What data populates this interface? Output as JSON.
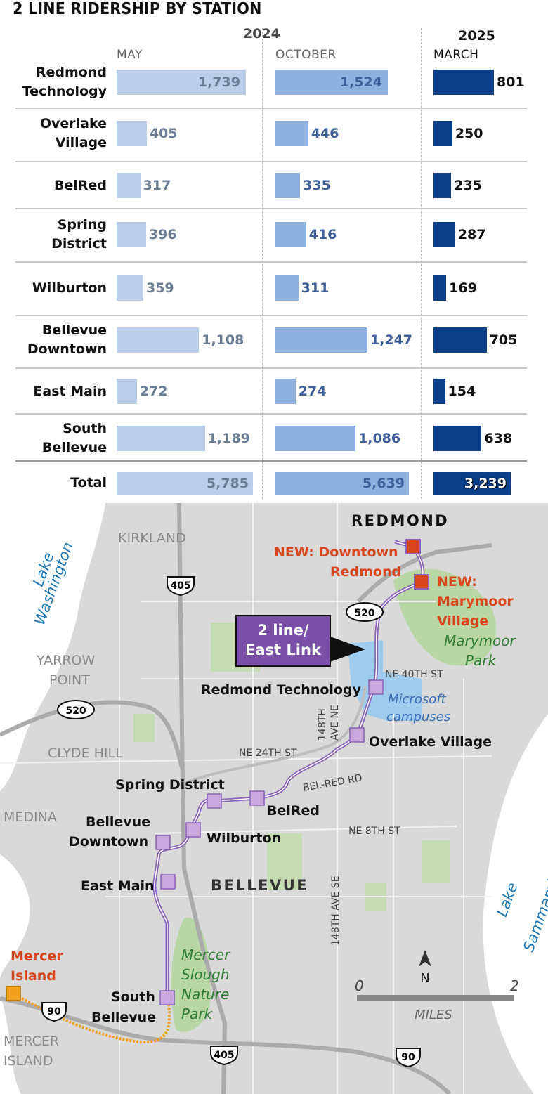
{
  "chart_data": {
    "type": "bar",
    "title": "2 LINE RIDERSHIP BY STATION",
    "year_labels": [
      "2024",
      "2025"
    ],
    "categories": [
      [
        "Redmond",
        "Technology"
      ],
      [
        "Overlake",
        "Village"
      ],
      [
        "BelRed"
      ],
      [
        "Spring",
        "District"
      ],
      [
        "Wilburton"
      ],
      [
        "Bellevue",
        "Downtown"
      ],
      [
        "East Main"
      ],
      [
        "South",
        "Bellevue"
      ]
    ],
    "series": [
      {
        "name": "MAY",
        "year": "2024",
        "color": "#bccde9",
        "label_color": "#6b7d94",
        "values": [
          1739,
          405,
          317,
          396,
          359,
          1108,
          272,
          1189
        ],
        "total": 5785
      },
      {
        "name": "OCTOBER",
        "year": "2024",
        "color": "#8fb1e0",
        "label_color": "#3f5f9a",
        "values": [
          1524,
          446,
          335,
          416,
          311,
          1247,
          274,
          1086
        ],
        "total": 5639
      },
      {
        "name": "MARCH",
        "year": "2025",
        "color": "#0b3f8a",
        "label_color": "#111111",
        "values": [
          801,
          250,
          235,
          287,
          169,
          705,
          154,
          638
        ],
        "total": 3239
      }
    ],
    "total_label": "Total"
  },
  "map": {
    "cities": {
      "redmond": "REDMOND",
      "kirkland": "KIRKLAND",
      "yarrow": [
        "YARROW",
        "POINT"
      ],
      "clyde": "CLYDE HILL",
      "medina": "MEDINA",
      "bellevue": "BELLEVUE",
      "mercer_island": [
        "MERCER",
        "ISLAND"
      ]
    },
    "water": {
      "lake_washington": [
        "Lake",
        "Washington"
      ],
      "lake_sammamish": [
        "Lake",
        "Sammamish"
      ]
    },
    "parks": {
      "marymoor": [
        "Marymoor",
        "Park"
      ],
      "mercer_slough": [
        "Mercer",
        "Slough",
        "Nature",
        "Park"
      ]
    },
    "microsoft": [
      "Microsoft",
      "campuses"
    ],
    "streets": {
      "ne40": "NE 40TH ST",
      "ne24": "NE 24TH ST",
      "belred_rd": "BEL-RED RD",
      "ne8": "NE 8TH ST",
      "ave148": [
        "148TH",
        "AVE NE"
      ],
      "ave148se": "148TH AVE SE"
    },
    "highways": {
      "i405": "405",
      "sr520": "520",
      "i90": "90"
    },
    "callout": [
      "2 line/",
      "East Link"
    ],
    "stations": {
      "redmond_tech": "Redmond Technology",
      "overlake": "Overlake Village",
      "spring": "Spring District",
      "belred": "BelRed",
      "bellevue_dt": [
        "Bellevue",
        "Downtown"
      ],
      "wilburton": "Wilburton",
      "east_main": "East Main",
      "south_bellevue": [
        "South",
        "Bellevue"
      ]
    },
    "new_stations": {
      "downtown_redmond": [
        "NEW: Downtown",
        "Redmond"
      ],
      "marymoor_village": [
        "NEW:",
        "Marymoor",
        "Village"
      ]
    },
    "mercer_station": [
      "Mercer",
      "Island"
    ],
    "north": "N",
    "scale": {
      "zero": "0",
      "two": "2",
      "unit": "MILES"
    },
    "colors": {
      "line": "#8a63b8",
      "station": "#c9a8dd",
      "new_station": "#d9461e",
      "orange": "#f2a11f",
      "water_label": "#1f78b4",
      "park_label": "#2e7d32"
    }
  }
}
